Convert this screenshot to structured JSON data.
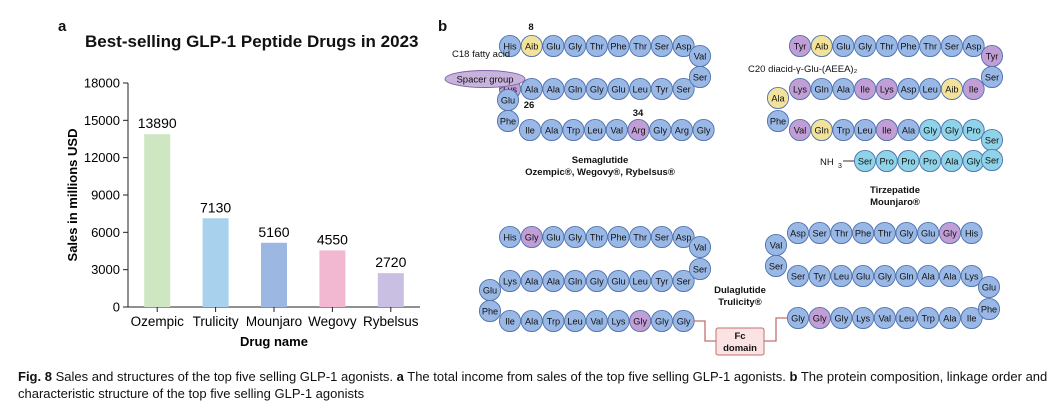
{
  "panel_a": {
    "letter": "a"
  },
  "panel_b": {
    "letter": "b"
  },
  "chart_data": {
    "type": "bar",
    "title": "Best-selling GLP-1 Peptide Drugs in 2023",
    "xlabel": "Drug name",
    "ylabel": "Sales in millions USD",
    "categories": [
      "Ozempic",
      "Trulicity",
      "Mounjaro",
      "Wegovy",
      "Rybelsus"
    ],
    "values": [
      13890,
      7130,
      5160,
      4550,
      2720
    ],
    "data_labels": [
      "13890",
      "7130",
      "5160",
      "4550",
      "2720"
    ],
    "colors": [
      "#cfe6c3",
      "#a8d1ee",
      "#9db7e3",
      "#f3b8d1",
      "#c8bfe2"
    ],
    "ylim": [
      0,
      18000
    ],
    "yticks": [
      0,
      3000,
      6000,
      9000,
      12000,
      15000,
      18000
    ],
    "ytick_labels": [
      "0",
      "3000",
      "6000",
      "9000",
      "12000",
      "15000",
      "18000"
    ],
    "grid": false
  },
  "structures": {
    "semaglutide": {
      "row1": [
        "His",
        "Aib",
        "Glu",
        "Gly",
        "Thr",
        "Phe",
        "Thr",
        "Ser",
        "Asp"
      ],
      "row2": [
        "Lys",
        "Ala",
        "Ala",
        "Gln",
        "Gly",
        "Glu",
        "Leu",
        "Tyr",
        "Ser"
      ],
      "row3": [
        "Ile",
        "Ala",
        "Trp",
        "Leu",
        "Val",
        "Arg",
        "Gly",
        "Arg",
        "Gly"
      ],
      "turn_right": [
        "Val",
        "Ser"
      ],
      "turn_left": [
        "Glu",
        "Phe"
      ],
      "pos_8": "8",
      "pos_26": "26",
      "pos_34": "34",
      "fatty_acid": "C18 fatty acid",
      "spacer": "Spacer group",
      "name": "Semaglutide",
      "brands": "Ozempic®, Wegovy®, Rybelsus®"
    },
    "tirzepatide": {
      "row1": [
        "Tyr",
        "Aib",
        "Glu",
        "Gly",
        "Thr",
        "Phe",
        "Thr",
        "Ser",
        "Asp"
      ],
      "row2": [
        "Lys",
        "Gln",
        "Ala",
        "Ile",
        "Lys",
        "Asp",
        "Leu",
        "Aib",
        "Ile"
      ],
      "row3": [
        "Val",
        "Gln",
        "Trp",
        "Leu",
        "Ile",
        "Ala",
        "Gly",
        "Gly",
        "Pro"
      ],
      "row4": [
        "Ser",
        "Pro",
        "Pro",
        "Pro",
        "Ala",
        "Gly"
      ],
      "turn_right": [
        "Tyr",
        "Ser"
      ],
      "turn_left": [
        "Ala",
        "Phe"
      ],
      "turn_right2": [
        "Ser",
        "Ser"
      ],
      "side_chain": "C20 diacid-γ-Glu-(AEEA)₂",
      "nh": "NH",
      "nh_sub": "3",
      "name": "Tirzepatide",
      "brands": "Mounjaro®"
    },
    "dulaglutide": {
      "left_row1": [
        "His",
        "Gly",
        "Glu",
        "Gly",
        "Thr",
        "Phe",
        "Thr",
        "Ser",
        "Asp"
      ],
      "left_row2": [
        "Lys",
        "Ala",
        "Ala",
        "Gln",
        "Gly",
        "Glu",
        "Leu",
        "Tyr",
        "Ser"
      ],
      "left_row3": [
        "Ile",
        "Ala",
        "Trp",
        "Leu",
        "Val",
        "Lys",
        "Gly",
        "Gly",
        "Gly"
      ],
      "left_turn_right": [
        "Val",
        "Ser"
      ],
      "left_turn_left": [
        "Glu",
        "Phe"
      ],
      "right_row1": [
        "Asp",
        "Ser",
        "Thr",
        "Phe",
        "Thr",
        "Gly",
        "Glu",
        "Gly",
        "His"
      ],
      "right_row2": [
        "Ser",
        "Tyr",
        "Leu",
        "Glu",
        "Gly",
        "Gln",
        "Ala",
        "Ala",
        "Lys"
      ],
      "right_row3": [
        "Gly",
        "Gly",
        "Gly",
        "Lys",
        "Val",
        "Leu",
        "Trp",
        "Ala",
        "Ile"
      ],
      "right_turn_left": [
        "Val",
        "Ser"
      ],
      "right_turn_right": [
        "Glu",
        "Phe"
      ],
      "fc_line1": "Fc",
      "fc_line2": "domain",
      "name": "Dulaglutide",
      "brands": "Trulicity®"
    }
  },
  "caption": {
    "fig": "Fig. 8",
    "t1": " Sales and structures of the top five selling GLP-1 agonists. ",
    "a": "a",
    "t2": " The total income from sales of the top five selling GLP-1 agonists. ",
    "b": "b",
    "t3": " The protein composition, linkage order and characteristic structure of the top five selling GLP-1 agonists"
  },
  "colors": {
    "blue_residue": "#9ab8e6",
    "yellow_residue": "#f3e39a",
    "purple_residue": "#c29ed6",
    "cyan_residue": "#8fd3e8",
    "fc_fill": "#fbe3e3",
    "fc_stroke": "#c07070"
  }
}
